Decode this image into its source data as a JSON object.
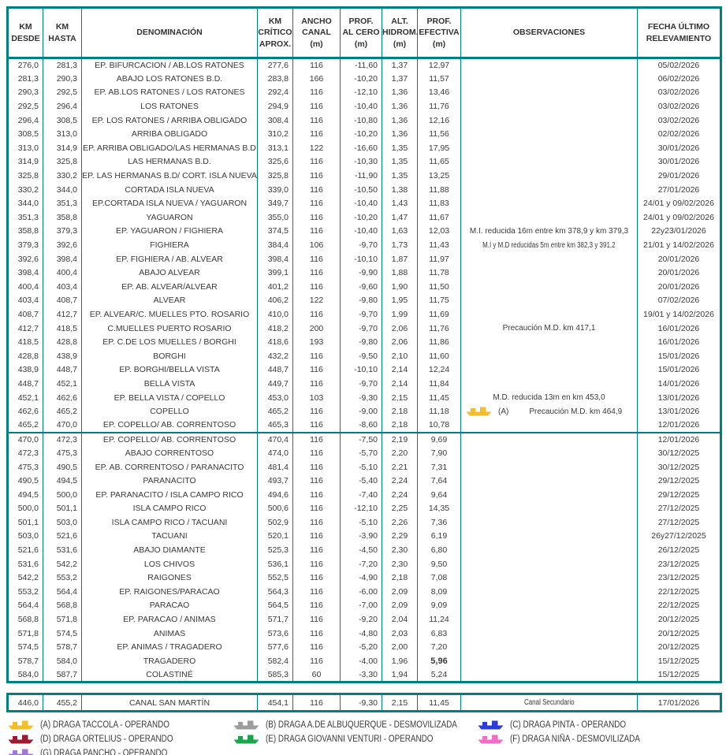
{
  "colors": {
    "table_border": "#007F80",
    "text": "#3A3A3A",
    "draga_a_yellow": "#F2BE2C",
    "draga_b_gray": "#9D9D9D",
    "draga_c_blue": "#2D3BD8",
    "draga_d_red": "#9C1B2E",
    "draga_e_green": "#1CA44C",
    "draga_f_pink": "#F06EC8",
    "draga_g_purple": "#A277D6"
  },
  "columns": [
    "KM\nDESDE",
    "KM\nHASTA",
    "DENOMINACIÓN",
    "KM\nCRÍTICO\nAPROX.",
    "ANCHO\nCANAL\n(m)",
    "PROF.\nAL CERO\n(m)",
    "ALT.\nHIDROM.\n(m)",
    "PROF.\nEFECTIVA\n(m)",
    "OBSERVACIONES",
    "FECHA ÚLTIMO\nRELEVAMIENTO"
  ],
  "table": {
    "sections": [
      {
        "rows": [
          [
            "276,0",
            "281,3",
            "EP. BIFURCACION / AB.LOS RATONES",
            "277,6",
            "116",
            "-11,60",
            "1,37",
            "12,97",
            "",
            "05/02/2026"
          ],
          [
            "281,3",
            "290,3",
            "ABAJO LOS RATONES B.D.",
            "283,8",
            "166",
            "-10,20",
            "1,37",
            "11,57",
            "",
            "06/02/2026"
          ],
          [
            "290,3",
            "292,5",
            "EP. AB.LOS RATONES / LOS RATONES",
            "292,4",
            "116",
            "-12,10",
            "1,36",
            "13,46",
            "",
            "03/02/2026"
          ],
          [
            "292,5",
            "296,4",
            "LOS RATONES",
            "294,9",
            "116",
            "-10,40",
            "1,36",
            "11,76",
            "",
            "03/02/2026"
          ],
          [
            "296,4",
            "308,5",
            "EP. LOS RATONES / ARRIBA OBLIGADO",
            "308,4",
            "116",
            "-10,80",
            "1,36",
            "12,16",
            "",
            "03/02/2026"
          ],
          [
            "308,5",
            "313,0",
            "ARRIBA OBLIGADO",
            "310,2",
            "116",
            "-10,20",
            "1,36",
            "11,56",
            "",
            "02/02/2026"
          ],
          [
            "313,0",
            "314,9",
            "EP. ARRIBA OBLIGADO/LAS HERMANAS B.D",
            "313,1",
            "122",
            "-16,60",
            "1,35",
            "17,95",
            "",
            "30/01/2026"
          ],
          [
            "314,9",
            "325,8",
            "LAS HERMANAS B.D.",
            "325,6",
            "116",
            "-10,30",
            "1,35",
            "11,65",
            "",
            "30/01/2026"
          ],
          [
            "325,8",
            "330,2",
            "EP. LAS HERMANAS B.D/ CORT. ISLA NUEVA",
            "325,8",
            "116",
            "-11,90",
            "1,35",
            "13,25",
            "",
            "29/01/2026"
          ],
          [
            "330,2",
            "344,0",
            "CORTADA ISLA NUEVA",
            "339,0",
            "116",
            "-10,50",
            "1,38",
            "11,88",
            "",
            "27/01/2026"
          ],
          [
            "344,0",
            "351,3",
            "EP.CORTADA ISLA NUEVA / YAGUARON",
            "349,7",
            "116",
            "-10,40",
            "1,43",
            "11,83",
            "",
            "24/01 y 09/02/2026"
          ],
          [
            "351,3",
            "358,8",
            "YAGUARON",
            "355,0",
            "116",
            "-10,20",
            "1,47",
            "11,67",
            "",
            "24/01 y 09/02/2026"
          ],
          [
            "358,8",
            "379,3",
            "EP. YAGUARON / FIGHIERA",
            "374,5",
            "116",
            "-10,40",
            "1,63",
            "12,03",
            "M.I. reducida 16m entre km 378,9 y km 379,3",
            "22y23/01/2026"
          ],
          [
            "379,3",
            "392,6",
            "FIGHIERA",
            "384,4",
            "106",
            "-9,70",
            "1,73",
            "11,43",
            "M.I y M.D reducidas 5m entre km 382,3 y 391,2",
            "21/01 y 14/02/2026"
          ],
          [
            "392,6",
            "398,4",
            "EP. FIGHIERA / AB. ALVEAR",
            "398,4",
            "116",
            "-10,10",
            "1,87",
            "11,97",
            "",
            "20/01/2026"
          ],
          [
            "398,4",
            "400,4",
            "ABAJO ALVEAR",
            "399,1",
            "116",
            "-9,90",
            "1,88",
            "11,78",
            "",
            "20/01/2026"
          ],
          [
            "400,4",
            "403,4",
            "EP. AB. ALVEAR/ALVEAR",
            "401,2",
            "116",
            "-9,60",
            "1,90",
            "11,50",
            "",
            "20/01/2026"
          ],
          [
            "403,4",
            "408,7",
            "ALVEAR",
            "406,2",
            "122",
            "-9,80",
            "1,95",
            "11,75",
            "",
            "07/02/2026"
          ],
          [
            "408,7",
            "412,7",
            "EP. ALVEAR/C. MUELLES PTO. ROSARIO",
            "410,0",
            "116",
            "-9,70",
            "1,99",
            "11,69",
            "",
            "19/01 y 14/02/2026"
          ],
          [
            "412,7",
            "418,5",
            "C.MUELLES PUERTO ROSARIO",
            "418,2",
            "200",
            "-9,70",
            "2,06",
            "11,76",
            "Precaución M.D. km 417,1",
            "16/01/2026"
          ],
          [
            "418,5",
            "428,8",
            "EP. C.DE LOS MUELLES / BORGHI",
            "418,6",
            "193",
            "-9,80",
            "2,06",
            "11,86",
            "",
            "16/01/2026"
          ],
          [
            "428,8",
            "438,9",
            "BORGHI",
            "432,2",
            "116",
            "-9,50",
            "2,10",
            "11,60",
            "",
            "15/01/2026"
          ],
          [
            "438,9",
            "448,7",
            "EP. BORGHI/BELLA VISTA",
            "448,7",
            "116",
            "-10,10",
            "2,14",
            "12,24",
            "",
            "15/01/2026"
          ],
          [
            "448,7",
            "452,1",
            "BELLA VISTA",
            "449,7",
            "116",
            "-9,70",
            "2,14",
            "11,84",
            "",
            "14/01/2026"
          ],
          [
            "452,1",
            "462,6",
            "EP. BELLA VISTA / COPELLO",
            "453,0",
            "103",
            "-9,30",
            "2,15",
            "11,45",
            "M.D. reducida 13m en km 453,0",
            "13/01/2026"
          ],
          [
            "462,6",
            "465,2",
            "COPELLO",
            "465,2",
            "116",
            "-9,00",
            "2,18",
            "11,18",
            "Precaución M.D. km 464,9",
            "13/01/2026"
          ],
          [
            "465,2",
            "470,0",
            "EP. COPELLO/ AB. CORRENTOSO",
            "465,3",
            "116",
            "-8,60",
            "2,18",
            "10,78",
            "",
            "12/01/2026"
          ]
        ]
      },
      {
        "rows": [
          [
            "470,0",
            "472,3",
            "EP. COPELLO/ AB. CORRENTOSO",
            "470,4",
            "116",
            "-7,50",
            "2,19",
            "9,69",
            "",
            "12/01/2026"
          ],
          [
            "472,3",
            "475,3",
            "ABAJO CORRENTOSO",
            "474,0",
            "116",
            "-5,70",
            "2,20",
            "7,90",
            "",
            "30/12/2025"
          ],
          [
            "475,3",
            "490,5",
            "EP. AB. CORRENTOSO / PARANACITO",
            "481,4",
            "116",
            "-5,10",
            "2,21",
            "7,31",
            "",
            "30/12/2025"
          ],
          [
            "490,5",
            "494,5",
            "PARANACITO",
            "493,7",
            "116",
            "-5,40",
            "2,24",
            "7,64",
            "",
            "29/12/2025"
          ],
          [
            "494,5",
            "500,0",
            "EP. PARANACITO / ISLA CAMPO RICO",
            "494,6",
            "116",
            "-7,40",
            "2,24",
            "9,64",
            "",
            "29/12/2025"
          ],
          [
            "500,0",
            "501,1",
            "ISLA CAMPO RICO",
            "500,6",
            "116",
            "-12,10",
            "2,25",
            "14,35",
            "",
            "27/12/2025"
          ],
          [
            "501,1",
            "503,0",
            "ISLA CAMPO RICO / TACUANI",
            "502,9",
            "116",
            "-5,10",
            "2,26",
            "7,36",
            "",
            "27/12/2025"
          ],
          [
            "503,0",
            "521,6",
            "TACUANI",
            "520,1",
            "116",
            "-3,90",
            "2,29",
            "6,19",
            "",
            "26y27/12/2025"
          ],
          [
            "521,6",
            "531,6",
            "ABAJO DIAMANTE",
            "525,3",
            "116",
            "-4,50",
            "2,30",
            "6,80",
            "",
            "26/12/2025"
          ],
          [
            "531,6",
            "542,2",
            "LOS CHIVOS",
            "536,1",
            "116",
            "-7,20",
            "2,30",
            "9,50",
            "",
            "23/12/2025"
          ],
          [
            "542,2",
            "553,2",
            "RAIGONES",
            "552,5",
            "116",
            "-4,90",
            "2,18",
            "7,08",
            "",
            "23/12/2025"
          ],
          [
            "553,2",
            "564,4",
            "EP. RAIGONES/PARACAO",
            "564,3",
            "116",
            "-6,00",
            "2,09",
            "8,09",
            "",
            "22/12/2025"
          ],
          [
            "564,4",
            "568,8",
            "PARACAO",
            "564,5",
            "116",
            "-7,00",
            "2,09",
            "9,09",
            "",
            "22/12/2025"
          ],
          [
            "568,8",
            "571,8",
            "EP. PARACAO / ANIMAS",
            "571,7",
            "116",
            "-9,20",
            "2,04",
            "11,24",
            "",
            "20/12/2025"
          ],
          [
            "571,8",
            "574,5",
            "ANIMAS",
            "573,6",
            "116",
            "-4,80",
            "2,03",
            "6,83",
            "",
            "20/12/2025"
          ],
          [
            "574,5",
            "578,7",
            "EP. ANIMAS / TRAGADERO",
            "577,6",
            "116",
            "-5,20",
            "2,00",
            "7,20",
            "",
            "20/12/2025"
          ],
          [
            "578,7",
            "584,0",
            "TRAGADERO",
            "582,4",
            "116",
            "-4,00",
            "1,96",
            "5,96",
            "",
            "15/12/2025"
          ],
          [
            "584,0",
            "587,7",
            "COLASTINÉ",
            "585,3",
            "60",
            "-3,30",
            "1,94",
            "5,24",
            "",
            "15/12/2025"
          ]
        ]
      }
    ]
  },
  "flags": {
    "bold_efectiva_rows": [
      26,
      44
    ],
    "obs_condensed_rows": [
      13
    ],
    "obs_ship_row": {
      "index": 25,
      "prefix": "(A)",
      "color": "#F2BE2C"
    }
  },
  "secondary_row": [
    "446,0",
    "455,2",
    "CANAL SAN MARTÍN",
    "454,1",
    "116",
    "-9,30",
    "2,15",
    "11,45",
    "Canal Secundario",
    "17/01/2026"
  ],
  "legend": {
    "items": [
      {
        "label": "(A) DRAGA TACCOLA - OPERANDO",
        "color": "#F2BE2C",
        "name": "draga-taccola"
      },
      {
        "label": "(B) DRAGA A.DE ALBUQUERQUE - DESMOVILIZADA",
        "color": "#9D9D9D",
        "name": "draga-albuquerque"
      },
      {
        "label": "(C) DRAGA PINTA - OPERANDO",
        "color": "#2D3BD8",
        "name": "draga-pinta"
      },
      {
        "label": "(D) DRAGA ORTELIUS - OPERANDO",
        "color": "#9C1B2E",
        "name": "draga-ortelius"
      },
      {
        "label": "(E) DRAGA GIOVANNI VENTURI - OPERANDO",
        "color": "#1CA44C",
        "name": "draga-giovanni-venturi"
      },
      {
        "label": "(F) DRAGA NIÑA - DESMOVILIZADA",
        "color": "#F06EC8",
        "name": "draga-nina"
      },
      {
        "label": "(G) DRAGA PANCHO - OPERANDO",
        "color": "#A277D6",
        "name": "draga-pancho"
      }
    ]
  }
}
